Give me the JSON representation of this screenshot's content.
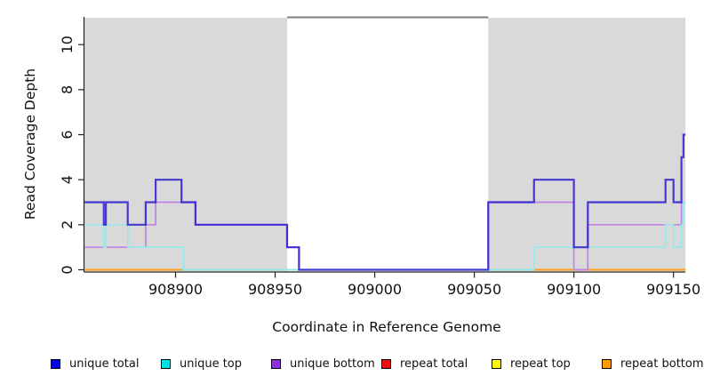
{
  "chart_data": {
    "type": "step-line",
    "title": "",
    "xlabel": "Coordinate in Reference Genome",
    "ylabel": "Read Coverage Depth",
    "xlim": [
      908854,
      909156
    ],
    "ylim": [
      0,
      11.2
    ],
    "x_ticks": [
      908900,
      908950,
      909000,
      909050,
      909100,
      909150
    ],
    "y_ticks": [
      0,
      2,
      4,
      6,
      8,
      10
    ],
    "grid": false,
    "plot_bg": "#ffffff",
    "shaded_regions": [
      {
        "name": "left-shaded-region",
        "from": 908854,
        "to": 908956,
        "color": "#d9d9d9"
      },
      {
        "name": "right-shaded-region",
        "from": 909057,
        "to": 909156,
        "color": "#d9d9d9"
      }
    ],
    "box_top_segment": {
      "from": 908956,
      "to": 909057,
      "color": "#7d7d7d"
    },
    "baseline_overlap_segments": [
      {
        "name": "cyan-yellow-overlap-left",
        "from": 908903,
        "to": 908962,
        "depth": 0,
        "color": "#8fcb8f"
      },
      {
        "name": "cyan-yellow-overlap-right",
        "from": 909057,
        "to": 909080,
        "depth": 0,
        "color": "#8fcb8f"
      }
    ],
    "series": [
      {
        "name": "repeat total",
        "color": "#e81010",
        "width": 2.0,
        "points": [
          [
            908854,
            0
          ]
        ],
        "end": 909156
      },
      {
        "name": "repeat top",
        "color": "#fbf514",
        "width": 2.0,
        "points": [
          [
            908854,
            0
          ]
        ],
        "end": 909156
      },
      {
        "name": "repeat bottom",
        "color": "#ff9d1e",
        "width": 2.0,
        "points": [
          [
            908854,
            0
          ]
        ],
        "end": 909156
      },
      {
        "name": "unique bottom",
        "color": "#c183e6",
        "width": 1.7,
        "points": [
          [
            908854,
            1
          ],
          [
            908885,
            2
          ],
          [
            908890,
            3
          ],
          [
            908910,
            2
          ],
          [
            908956,
            1
          ],
          [
            908962,
            0
          ],
          [
            909057,
            3
          ],
          [
            909100,
            0
          ],
          [
            909107,
            2
          ],
          [
            909154,
            3
          ]
        ],
        "end": 909156
      },
      {
        "name": "unique top",
        "color": "#97e9e9",
        "width": 1.7,
        "points": [
          [
            908854,
            2
          ],
          [
            908864,
            1
          ],
          [
            908865,
            2
          ],
          [
            908876,
            1
          ],
          [
            908904,
            0
          ],
          [
            909080,
            1
          ],
          [
            909146,
            2
          ],
          [
            909150,
            1
          ],
          [
            909154,
            2
          ],
          [
            909155,
            3
          ]
        ],
        "end": 909156
      },
      {
        "name": "unique total",
        "color": "rgba(42,28,208,0.85)",
        "width": 2.2,
        "points": [
          [
            908854,
            3
          ],
          [
            908864,
            2
          ],
          [
            908865,
            3
          ],
          [
            908876,
            2
          ],
          [
            908885,
            3
          ],
          [
            908890,
            4
          ],
          [
            908903,
            3
          ],
          [
            908910,
            2
          ],
          [
            908956,
            1
          ],
          [
            908962,
            0
          ],
          [
            909057,
            3
          ],
          [
            909080,
            4
          ],
          [
            909100,
            1
          ],
          [
            909107,
            3
          ],
          [
            909146,
            4
          ],
          [
            909150,
            3
          ],
          [
            909154,
            5
          ],
          [
            909155,
            6
          ]
        ],
        "end": 909156
      }
    ],
    "x_tick_labels": [
      "908900",
      "908950",
      "909000",
      "909050",
      "909100",
      "909150"
    ],
    "y_tick_labels": [
      "0",
      "2",
      "4",
      "6",
      "8",
      "10"
    ],
    "legend_position": "bottom"
  },
  "legend": {
    "items": [
      {
        "label": "unique total",
        "color": "#0000e1"
      },
      {
        "label": "unique top",
        "color": "#00e3e3"
      },
      {
        "label": "unique bottom",
        "color": "#8d2fd6"
      },
      {
        "label": "repeat total",
        "color": "#e81010"
      },
      {
        "label": "repeat top",
        "color": "#fbf514"
      },
      {
        "label": "repeat bottom",
        "color": "#ff9d00"
      }
    ]
  },
  "axes": {
    "x_title": "Coordinate in Reference Genome",
    "y_title": "Read Coverage Depth"
  }
}
